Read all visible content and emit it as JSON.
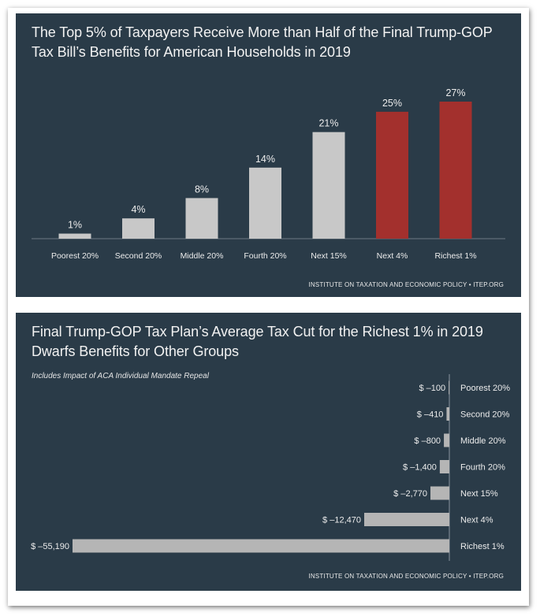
{
  "chart_data": [
    {
      "type": "bar",
      "title": "The Top 5% of Taxpayers Receive More than Half of the Final Trump-GOP Tax Bill’s Benefits for American Households in 2019",
      "categories": [
        "Poorest 20%",
        "Second 20%",
        "Middle 20%",
        "Fourth 20%",
        "Next 15%",
        "Next 4%",
        "Richest 1%"
      ],
      "values": [
        1,
        4,
        8,
        14,
        21,
        25,
        27
      ],
      "value_labels": [
        "1%",
        "4%",
        "8%",
        "14%",
        "21%",
        "25%",
        "27%"
      ],
      "colors": [
        "#c8c8c8",
        "#c8c8c8",
        "#c8c8c8",
        "#c8c8c8",
        "#c8c8c8",
        "#a3302d",
        "#a3302d"
      ],
      "ylim": [
        0,
        27
      ],
      "grid": false,
      "source": "INSTITUTE ON TAXATION AND ECONOMIC POLICY • ITEP.ORG"
    },
    {
      "type": "bar",
      "orientation": "horizontal",
      "title": "Final Trump-GOP Tax Plan’s Average Tax Cut for the Richest 1% in 2019 Dwarfs Benefits for Other Groups",
      "subtitle": "Includes Impact of ACA Individual Mandate Repeal",
      "categories": [
        "Poorest 20%",
        "Second 20%",
        "Middle 20%",
        "Fourth 20%",
        "Next 15%",
        "Next 4%",
        "Richest 1%"
      ],
      "values": [
        -100,
        -410,
        -800,
        -1400,
        -2770,
        -12470,
        -55190
      ],
      "value_labels": [
        "$ –100",
        "$ –410",
        "$ –800",
        "$ –1,400",
        "$ –2,770",
        "$ –12,470",
        "$ –55,190"
      ],
      "colors": [
        "#b5b5b5"
      ],
      "xlim": [
        -55190,
        0
      ],
      "grid": false,
      "source": "INSTITUTE ON TAXATION AND ECONOMIC POLICY • ITEP.ORG"
    }
  ]
}
